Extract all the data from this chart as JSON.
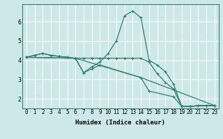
{
  "xlabel": "Humidex (Indice chaleur)",
  "background_color": "#cce8e8",
  "grid_color": "#ffffff",
  "line_color": "#2e7d6e",
  "xlim": [
    -0.5,
    23.5
  ],
  "ylim": [
    1.5,
    6.9
  ],
  "yticks": [
    2,
    3,
    4,
    5,
    6
  ],
  "xticks": [
    0,
    1,
    2,
    3,
    4,
    5,
    6,
    7,
    8,
    9,
    10,
    11,
    12,
    13,
    14,
    15,
    16,
    17,
    18,
    19,
    20,
    21,
    22,
    23
  ],
  "series": [
    {
      "x": [
        0,
        1,
        2,
        3,
        4,
        5,
        6,
        7,
        8,
        9,
        10,
        11,
        12,
        13,
        14,
        15,
        16,
        17,
        18,
        19,
        20,
        21,
        22,
        23
      ],
      "y": [
        4.15,
        4.25,
        4.35,
        4.25,
        4.2,
        4.15,
        4.1,
        3.35,
        3.65,
        3.9,
        4.35,
        5.0,
        6.3,
        6.55,
        6.2,
        4.0,
        3.75,
        3.4,
        2.75,
        1.6,
        1.6,
        1.65,
        1.65,
        1.65
      ]
    },
    {
      "x": [
        0,
        1,
        2,
        3,
        4,
        5,
        6,
        7,
        8,
        9,
        10,
        11,
        12,
        13,
        14,
        15,
        16,
        17,
        18,
        19,
        20,
        21,
        22,
        23
      ],
      "y": [
        4.15,
        4.25,
        4.35,
        4.25,
        4.2,
        4.15,
        4.1,
        4.1,
        4.1,
        4.1,
        4.1,
        4.1,
        4.1,
        4.1,
        4.1,
        3.9,
        3.3,
        2.85,
        2.5,
        1.6,
        1.6,
        1.65,
        1.65,
        1.65
      ]
    },
    {
      "x": [
        0,
        6,
        7,
        8,
        9,
        14,
        15,
        18,
        19,
        23
      ],
      "y": [
        4.15,
        4.1,
        3.35,
        3.55,
        3.75,
        3.1,
        2.4,
        2.1,
        1.6,
        1.65
      ]
    },
    {
      "x": [
        0,
        6,
        14,
        23
      ],
      "y": [
        4.15,
        4.1,
        3.1,
        1.65
      ]
    }
  ]
}
